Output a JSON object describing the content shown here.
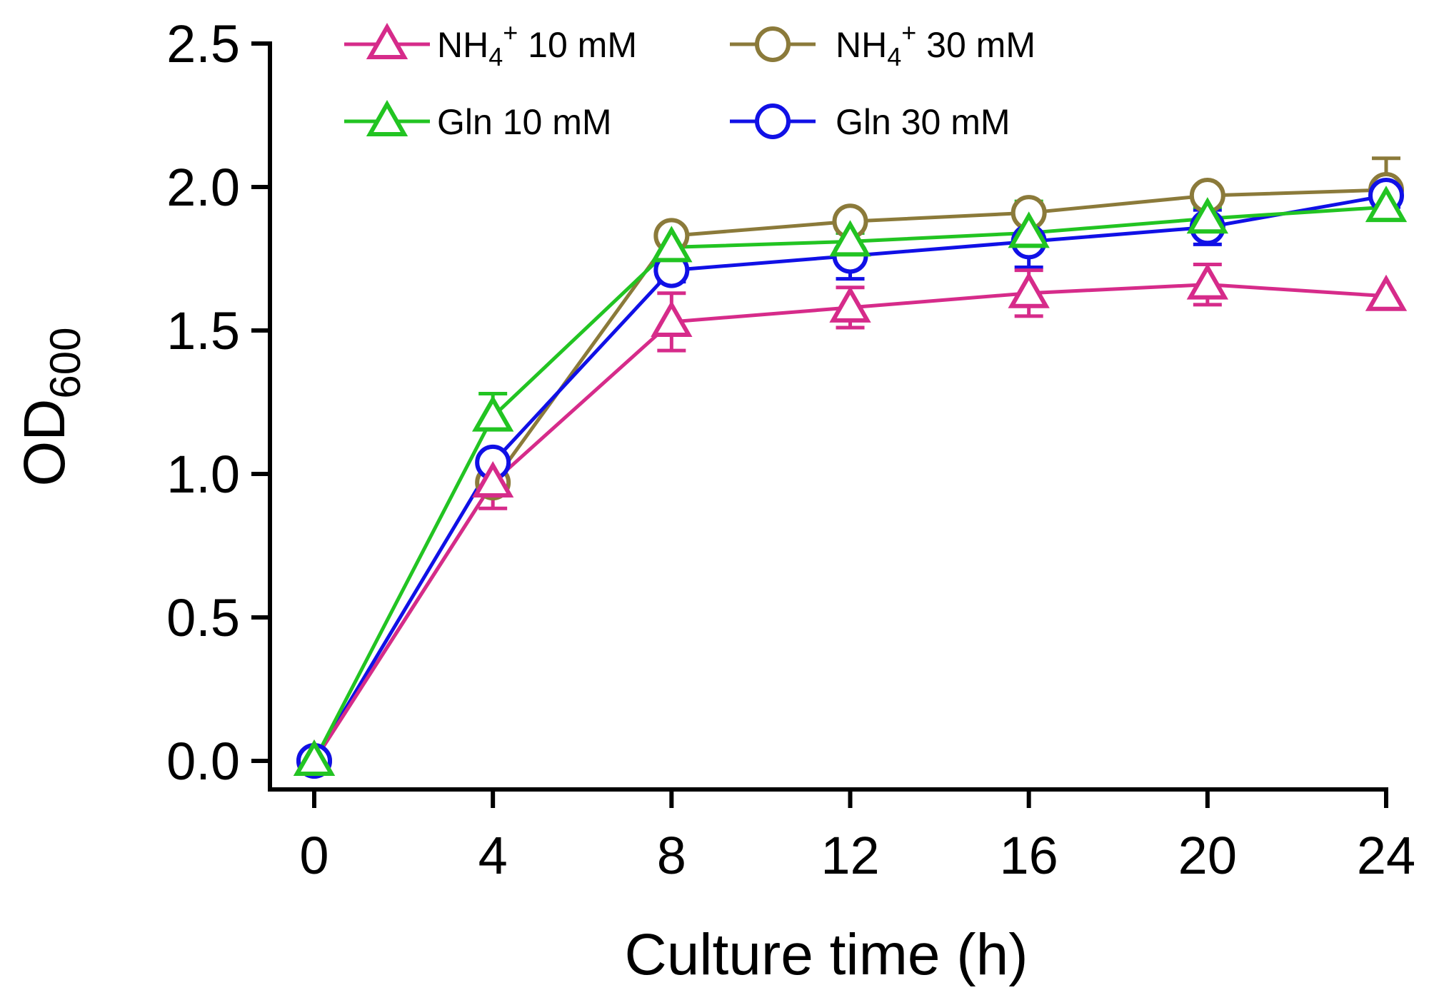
{
  "chart_data": {
    "type": "line",
    "xlabel": "Culture time (h)",
    "ylabel_main": "OD",
    "ylabel_sub": "600",
    "x": [
      0,
      4,
      8,
      12,
      16,
      20,
      24
    ],
    "x_ticks": [
      "0",
      "4",
      "8",
      "12",
      "16",
      "20",
      "24"
    ],
    "xlim": [
      0,
      24
    ],
    "y_ticks": [
      "0.0",
      "0.5",
      "1.0",
      "1.5",
      "2.0",
      "2.5"
    ],
    "ylim": [
      0,
      2.5
    ],
    "grid": false,
    "legend_placement": "top",
    "series": [
      {
        "name_main": "NH",
        "name_sub": "4",
        "name_sup": "+",
        "name_rest": "  10 mM",
        "marker": "triangle",
        "color": "#d62b8a",
        "values": [
          0.0,
          0.97,
          1.53,
          1.58,
          1.63,
          1.66,
          1.62
        ],
        "errors": [
          0.0,
          0.09,
          0.1,
          0.07,
          0.08,
          0.07,
          0.0
        ]
      },
      {
        "name_main": "NH",
        "name_sub": "4",
        "name_sup": "+",
        "name_rest": "  30 mM",
        "marker": "circle",
        "color": "#8b7a3a",
        "values": [
          0.0,
          0.97,
          1.83,
          1.88,
          1.91,
          1.97,
          1.99
        ],
        "errors": [
          0.0,
          0.04,
          0.03,
          0.03,
          0.03,
          0.03,
          0.11
        ]
      },
      {
        "name_main": "Gln 10 mM",
        "marker": "triangle",
        "color": "#22c422",
        "values": [
          0.0,
          1.2,
          1.79,
          1.81,
          1.84,
          1.89,
          1.93
        ],
        "errors": [
          0.0,
          0.08,
          0.04,
          0.03,
          0.11,
          0.04,
          0.06
        ]
      },
      {
        "name_main": "Gln 30 mM",
        "marker": "circle",
        "color": "#1010e6",
        "values": [
          0.0,
          1.04,
          1.71,
          1.76,
          1.81,
          1.86,
          1.97
        ],
        "errors": [
          0.0,
          0.03,
          0.04,
          0.08,
          0.09,
          0.06,
          0.04
        ]
      }
    ]
  }
}
